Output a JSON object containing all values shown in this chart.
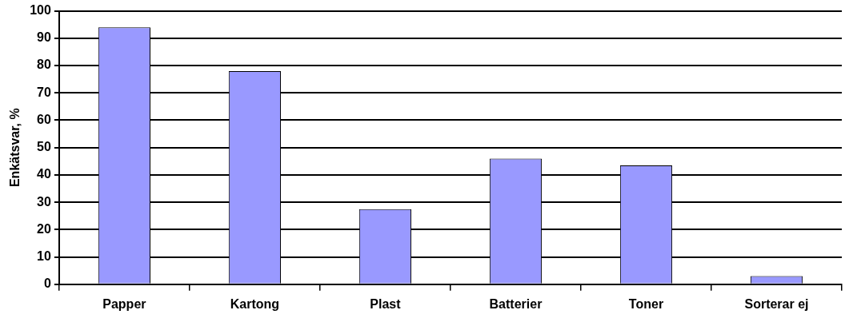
{
  "chart_data": {
    "type": "bar",
    "ylabel": "Enkätsvar, %",
    "categories": [
      "Papper",
      "Kartong",
      "Plast",
      "Batterier",
      "Toner",
      "Sorterar ej"
    ],
    "values": [
      94,
      78,
      27.5,
      46,
      43.5,
      3
    ],
    "color": "#9999ff",
    "ylim": [
      0,
      100
    ],
    "yticks": [
      0,
      10,
      20,
      30,
      40,
      50,
      60,
      70,
      80,
      90,
      100
    ],
    "grid": "y",
    "legend": false
  }
}
